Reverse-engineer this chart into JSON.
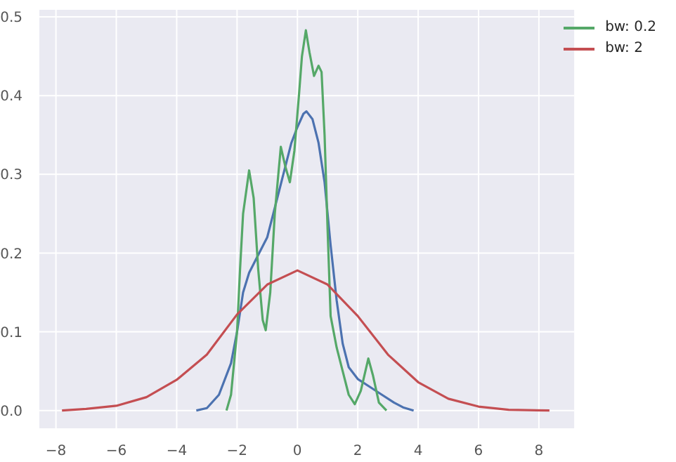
{
  "chart_data": {
    "type": "line",
    "xlim": [
      -8.55,
      9.17
    ],
    "ylim": [
      -0.0226,
      0.509
    ],
    "xticks": [
      -8,
      -6,
      -4,
      -2,
      0,
      2,
      4,
      6,
      8
    ],
    "yticks": [
      {
        "value": 0,
        "label": "0.0"
      },
      {
        "value": 0.1,
        "label": "0.1"
      },
      {
        "value": 0.2,
        "label": "0.2"
      },
      {
        "value": 0.3,
        "label": "0.3"
      },
      {
        "value": 0.4,
        "label": "0.4"
      },
      {
        "value": 0.5,
        "label": "0.5"
      }
    ],
    "grid": true,
    "legend": "top right",
    "series": [
      {
        "color": "#4c72b0",
        "x": [
          -3.35,
          -3,
          -2.6,
          -2.2,
          -2,
          -1.8,
          -1.6,
          -1.2,
          -1,
          -0.8,
          -0.6,
          -0.4,
          -0.2,
          0,
          0.2,
          0.3,
          0.5,
          0.7,
          0.9,
          1.1,
          1.3,
          1.5,
          1.7,
          2,
          2.4,
          2.8,
          3.2,
          3.5,
          3.85
        ],
        "values": [
          0,
          0.003,
          0.02,
          0.06,
          0.1,
          0.15,
          0.175,
          0.205,
          0.22,
          0.25,
          0.28,
          0.31,
          0.34,
          0.36,
          0.377,
          0.38,
          0.37,
          0.34,
          0.29,
          0.21,
          0.14,
          0.085,
          0.055,
          0.04,
          0.03,
          0.02,
          0.01,
          0.004,
          0
        ]
      },
      {
        "name": "bw: 0.2",
        "color": "#55a868",
        "x": [
          -2.35,
          -2.2,
          -2,
          -1.9,
          -1.8,
          -1.6,
          -1.45,
          -1.3,
          -1.15,
          -1.05,
          -0.9,
          -0.75,
          -0.55,
          -0.4,
          -0.25,
          -0.1,
          0.05,
          0.15,
          0.28,
          0.4,
          0.55,
          0.7,
          0.8,
          0.9,
          1,
          1.1,
          1.3,
          1.5,
          1.7,
          1.9,
          2.1,
          2.35,
          2.5,
          2.7,
          2.95
        ],
        "values": [
          0,
          0.02,
          0.1,
          0.18,
          0.25,
          0.305,
          0.27,
          0.18,
          0.115,
          0.102,
          0.15,
          0.25,
          0.335,
          0.31,
          0.29,
          0.33,
          0.4,
          0.45,
          0.483,
          0.455,
          0.425,
          0.438,
          0.43,
          0.35,
          0.23,
          0.12,
          0.08,
          0.05,
          0.02,
          0.008,
          0.025,
          0.066,
          0.045,
          0.01,
          0
        ]
      },
      {
        "name": "bw: 2",
        "color": "#c44e52",
        "x": [
          -7.8,
          -7,
          -6,
          -5,
          -4,
          -3,
          -2,
          -1,
          0,
          1,
          2,
          3,
          4,
          5,
          6,
          7,
          8.35
        ],
        "values": [
          0,
          0.002,
          0.006,
          0.017,
          0.039,
          0.071,
          0.122,
          0.16,
          0.178,
          0.16,
          0.12,
          0.071,
          0.036,
          0.015,
          0.005,
          0.001,
          0
        ]
      }
    ]
  }
}
